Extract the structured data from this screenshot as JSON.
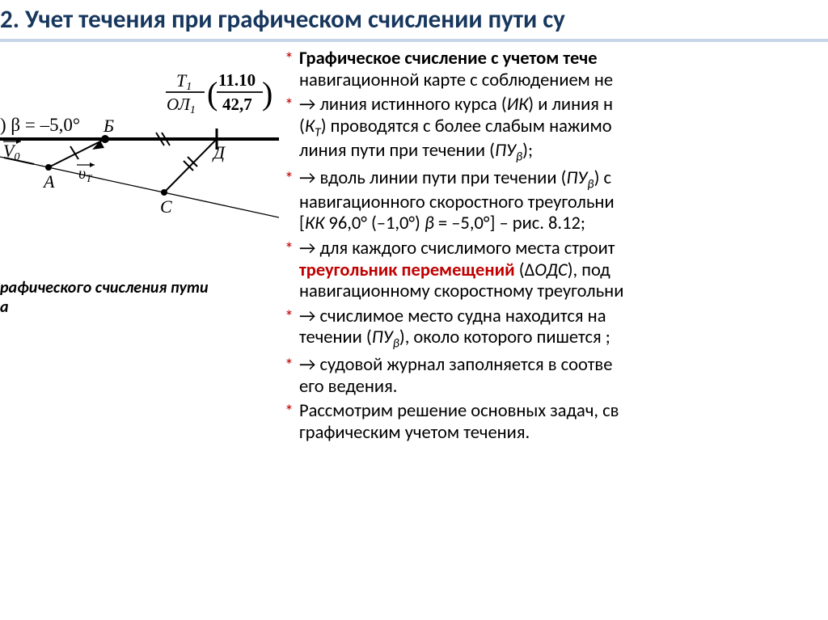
{
  "title": "2. Учет течения при графическом счислении пути су",
  "figure": {
    "beta_label": ") β = –5,0°",
    "fraction_top": "T",
    "fraction_top_sub": "1",
    "fraction_bot": "ОЛ",
    "fraction_bot_sub": "1",
    "paren_top": "11.10",
    "paren_bot": "42,7",
    "V0": "V",
    "vt": "υ",
    "vt_sub": "T",
    "A": "А",
    "B": "Б",
    "C": "С",
    "D": "Д"
  },
  "caption_line1": "рафического счисления пути",
  "caption_line2": "а",
  "bullets": [
    {
      "star": true,
      "lines": [
        "<b>Графическое счисление с учетом тече</b>",
        "навигационной карте с соблюдением не"
      ]
    },
    {
      "star": true,
      "lines": [
        "→ линия истинного курса (<i>ИК</i>) и линия н",
        "(<i>К<span class=\"sub\">Т</span></i>) проводятся с более слабым нажимо",
        "линия пути при течении (<i>ПУ<span class=\"sub\">β</span></i>);"
      ]
    },
    {
      "star": true,
      "lines": [
        "→ вдоль линии пути при течении (<i>ПУ<span class=\"sub\">β</span></i>) с",
        "навигационного скоростного треугольни",
        "[<i>КК</i> 96,0° (–1,0°) <i>β</i> = –5,0°] – рис. 8.12;"
      ]
    },
    {
      "star": true,
      "lines": [
        "→ для каждого счислимого места строит",
        "<span class=\"red\">треугольник перемещений</span>  (Δ<i>ОДС</i>), под",
        "навигационному скоростному треугольни"
      ]
    },
    {
      "star": true,
      "lines": [
        "→ счислимое место судна находится на",
        "течении (<i>ПУ<span class=\"sub\">β</span></i>), около которого пишется ;"
      ]
    },
    {
      "star": true,
      "lines": [
        "→ судовой журнал заполняется в соотве",
        "его ведения."
      ]
    },
    {
      "star": true,
      "lines": [
        "Рассмотрим решение основных задач, св",
        "графическим учетом течения."
      ]
    }
  ],
  "colors": {
    "title": "#17375e",
    "hr": "#c7d6e6",
    "bullet": "#c00000",
    "red_text": "#c00000"
  }
}
